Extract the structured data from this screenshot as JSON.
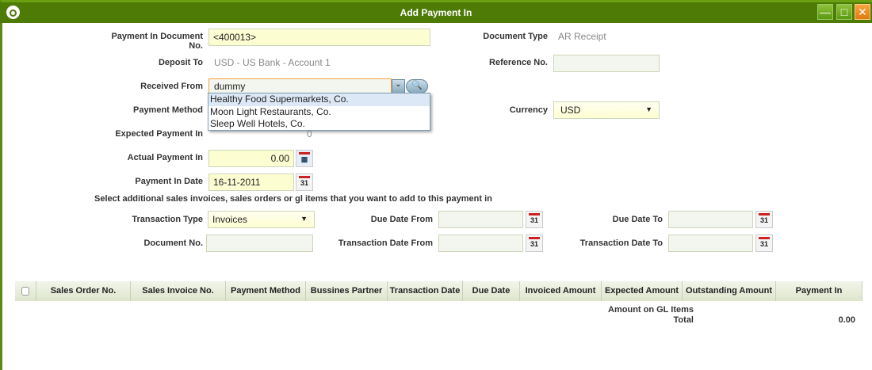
{
  "window": {
    "title": "Add Payment In",
    "minimize": "—",
    "maximize": "□",
    "close": "✕"
  },
  "form": {
    "doc_no_label": "Payment In Document No.",
    "doc_no_value": "<400013>",
    "doc_type_label": "Document Type",
    "doc_type_value": "AR Receipt",
    "deposit_label": "Deposit To",
    "deposit_value": "USD - US Bank - Account 1",
    "reference_label": "Reference No.",
    "reference_value": "",
    "received_label": "Received From",
    "received_value": "dummy",
    "received_options": [
      "Healthy Food Supermarkets, Co.",
      "Moon Light Restaurants, Co.",
      "Sleep Well Hotels, Co."
    ],
    "payment_method_label": "Payment Method",
    "currency_label": "Currency",
    "currency_value": "USD",
    "expected_label": "Expected Payment In",
    "expected_value": "0",
    "actual_label": "Actual Payment In",
    "actual_value": "0.00",
    "date_label": "Payment In Date",
    "date_value": "16-11-2011",
    "instructions": "Select additional sales invoices, sales orders or gl items that you want to add to this payment in"
  },
  "filters": {
    "trx_type_label": "Transaction Type",
    "trx_type_value": "Invoices",
    "due_from_label": "Due Date From",
    "due_to_label": "Due Date To",
    "doc_no_label": "Document No.",
    "trx_from_label": "Transaction Date From",
    "trx_to_label": "Transaction Date To",
    "calendar_text": "31"
  },
  "table": {
    "columns": [
      "Sales Order No.",
      "Sales Invoice No.",
      "Payment Method",
      "Bussines Partner",
      "Transaction Date",
      "Due Date",
      "Invoiced Amount",
      "Expected Amount",
      "Outstanding Amount",
      "Payment In"
    ]
  },
  "totals": {
    "gl_label": "Amount on GL Items",
    "total_label": "Total",
    "total_value": "0.00"
  },
  "colors": {
    "titlebar": "#4e7a06",
    "required_field": "#fdfdd2"
  }
}
